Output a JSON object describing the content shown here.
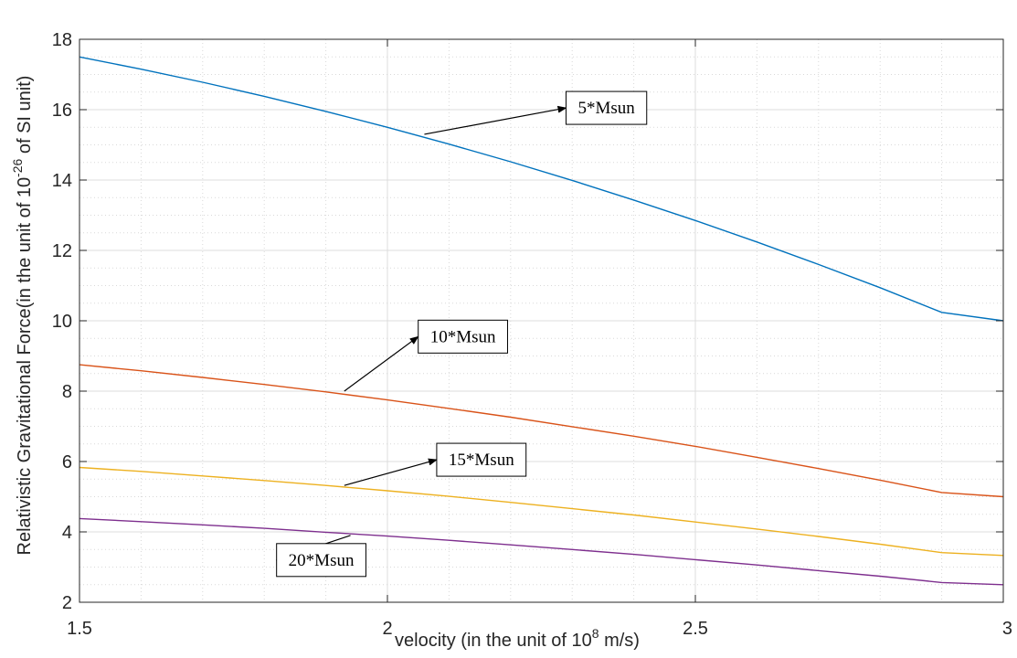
{
  "chart_data": {
    "type": "line",
    "xlabel": "velocity (in the unit of 10",
    "xlabel_superscript": "8",
    "xlabel_suffix": " m/s)",
    "ylabel": "Relativistic Gravitational Force(in the unit of 10",
    "ylabel_superscript": "-26",
    "ylabel_suffix": " of SI unit)",
    "xlim": [
      1.5,
      3
    ],
    "ylim": [
      2,
      18
    ],
    "xticks": [
      1.5,
      2,
      2.5,
      3
    ],
    "xtick_labels": [
      "1.5",
      "2",
      "2.5",
      "3"
    ],
    "yticks": [
      2,
      4,
      6,
      8,
      10,
      12,
      14,
      16,
      18
    ],
    "ytick_labels": [
      "2",
      "4",
      "6",
      "8",
      "10",
      "12",
      "14",
      "16",
      "18"
    ],
    "grid": true,
    "minor_grid": true,
    "x": [
      1.5,
      1.6,
      1.7,
      1.8,
      1.9,
      2.0,
      2.1,
      2.2,
      2.3,
      2.4,
      2.5,
      2.6,
      2.7,
      2.8,
      2.9,
      3.0
    ],
    "series": [
      {
        "values": [
          17.5,
          17.15,
          16.78,
          16.38,
          15.95,
          15.5,
          15.02,
          14.52,
          13.99,
          13.43,
          12.85,
          12.24,
          11.6,
          10.94,
          10.24,
          10.0
        ],
        "color": "#0072BD"
      },
      {
        "values": [
          8.75,
          8.58,
          8.39,
          8.19,
          7.98,
          7.75,
          7.51,
          7.26,
          6.99,
          6.72,
          6.43,
          6.12,
          5.8,
          5.47,
          5.12,
          5.0
        ],
        "color": "#D95319"
      },
      {
        "values": [
          5.83,
          5.72,
          5.59,
          5.46,
          5.32,
          5.17,
          5.01,
          4.84,
          4.66,
          4.48,
          4.28,
          4.08,
          3.87,
          3.65,
          3.41,
          3.33
        ],
        "color": "#EDB120"
      },
      {
        "values": [
          4.38,
          4.29,
          4.2,
          4.1,
          3.99,
          3.88,
          3.76,
          3.63,
          3.5,
          3.36,
          3.21,
          3.06,
          2.9,
          2.74,
          2.56,
          2.5
        ],
        "color": "#7E2F8E"
      }
    ],
    "annotations": [
      {
        "text": "5*Msun",
        "point": [
          2.06,
          15.3
        ],
        "box_at": [
          2.29,
          16.05
        ]
      },
      {
        "text": "10*Msun",
        "point": [
          1.93,
          8.0
        ],
        "box_at": [
          2.05,
          9.55
        ]
      },
      {
        "text": "15*Msun",
        "point": [
          1.93,
          5.32
        ],
        "box_at": [
          2.08,
          6.05
        ]
      },
      {
        "text": "20*Msun",
        "point": [
          1.94,
          3.9
        ],
        "box_at": [
          1.82,
          3.2
        ]
      }
    ]
  }
}
